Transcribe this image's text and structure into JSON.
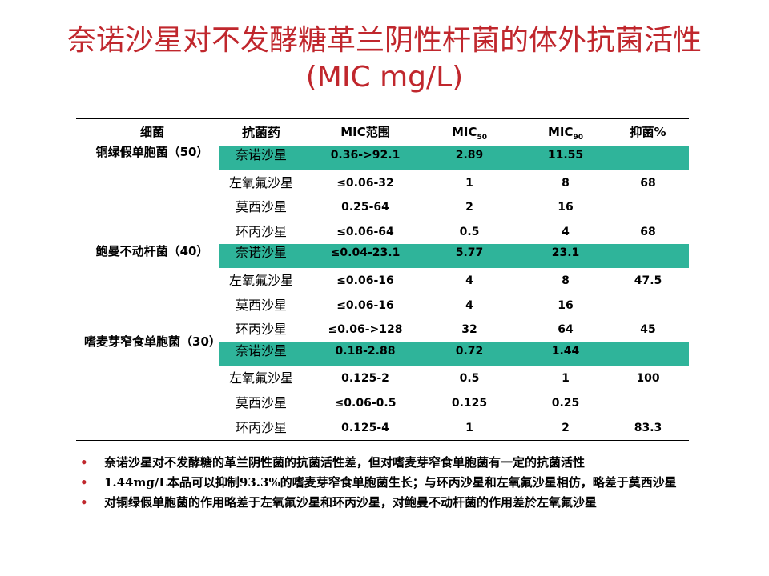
{
  "title": {
    "line1": "奈诺沙星对不发酵糖革兰阴性杆菌的体外抗菌活性",
    "line2": "(MIC mg/L)"
  },
  "table": {
    "headers": [
      "细菌",
      "抗菌药",
      "MIC范围",
      "MIC50",
      "MIC90",
      "抑菌%"
    ],
    "groups": [
      {
        "name": "铜绿假单胞菌（50）",
        "rows": [
          0
        ]
      },
      {
        "name": "鲍曼不动杆菌（40）",
        "rows": [
          1,
          2,
          3,
          4
        ]
      },
      {
        "name": "嗜麦芽窄食单胞菌（30）",
        "rows": [
          5,
          6,
          7,
          8
        ]
      }
    ],
    "rows": [
      {
        "drug": "奈诺沙星",
        "range": "0.36->92.1",
        "mic50": "2.89",
        "mic90": "11.55",
        "pct": "",
        "highlight": true
      },
      {
        "drug": "左氧氟沙星",
        "range": "≤0.06-32",
        "mic50": "1",
        "mic90": "8",
        "pct": "68",
        "highlight": false
      },
      {
        "drug": "莫西沙星",
        "range": "0.25-64",
        "mic50": "2",
        "mic90": "16",
        "pct": "",
        "highlight": false
      },
      {
        "drug": "环丙沙星",
        "range": "≤0.06-64",
        "mic50": "0.5",
        "mic90": "4",
        "pct": "68",
        "highlight": false
      },
      {
        "drug": "奈诺沙星",
        "range": "≤0.04-23.1",
        "mic50": "5.77",
        "mic90": "23.1",
        "pct": "",
        "highlight": true
      },
      {
        "drug": "左氧氟沙星",
        "range": "≤0.06-16",
        "mic50": "4",
        "mic90": "8",
        "pct": "47.5",
        "highlight": false
      },
      {
        "drug": "莫西沙星",
        "range": "≤0.06-16",
        "mic50": "4",
        "mic90": "16",
        "pct": "",
        "highlight": false
      },
      {
        "drug": "环丙沙星",
        "range": "≤0.06->128",
        "mic50": "32",
        "mic90": "64",
        "pct": "45",
        "highlight": false
      },
      {
        "drug": "奈诺沙星",
        "range": "0.18-2.88",
        "mic50": "0.72",
        "mic90": "1.44",
        "pct": "",
        "highlight": true
      },
      {
        "drug": "左氧氟沙星",
        "range": "0.125-2",
        "mic50": "0.5",
        "mic90": "1",
        "pct": "100",
        "highlight": false
      },
      {
        "drug": "莫西沙星",
        "range": "≤0.06-0.5",
        "mic50": "0.125",
        "mic90": "0.25",
        "pct": "",
        "highlight": false
      },
      {
        "drug": "环丙沙星",
        "range": "0.125-4",
        "mic50": "1",
        "mic90": "2",
        "pct": "83.3",
        "highlight": false
      }
    ]
  },
  "bullets": [
    "奈诺沙星对不发酵糖的革兰阴性菌的抗菌活性差，但对嗜麦芽窄食单胞菌有一定的抗菌活性",
    "1.44mg/L本品可以抑制93.3%的嗜麦芽窄食单胞菌生长；与环丙沙星和左氧氟沙星相仿，略差于莫西沙星",
    "对铜绿假单胞菌的作用略差于左氧氟沙星和环丙沙星，对鲍曼不动杆菌的作用差於左氧氟沙星"
  ],
  "colors": {
    "title": "#c0272d",
    "highlight": "#2fb49a",
    "bullet": "#c0272d"
  }
}
